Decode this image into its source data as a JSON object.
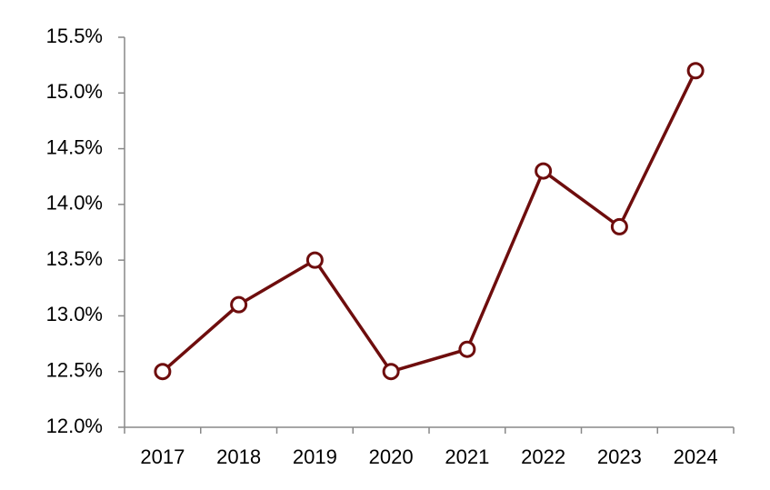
{
  "chart_data": {
    "type": "line",
    "categories": [
      "2017",
      "2018",
      "2019",
      "2020",
      "2021",
      "2022",
      "2023",
      "2024"
    ],
    "values": [
      12.5,
      13.1,
      13.5,
      12.5,
      12.7,
      14.3,
      13.8,
      15.2
    ],
    "color": "#6e0d0d",
    "ylim": [
      12.0,
      15.5
    ],
    "yticks": [
      {
        "value": 12.0,
        "label": "12.0%"
      },
      {
        "value": 12.5,
        "label": "12.5%"
      },
      {
        "value": 13.0,
        "label": "13.0%"
      },
      {
        "value": 13.5,
        "label": "13.5%"
      },
      {
        "value": 14.0,
        "label": "14.0%"
      },
      {
        "value": 14.5,
        "label": "14.5%"
      },
      {
        "value": 15.0,
        "label": "15.0%"
      },
      {
        "value": 15.5,
        "label": "15.5%"
      }
    ],
    "grid": false
  }
}
